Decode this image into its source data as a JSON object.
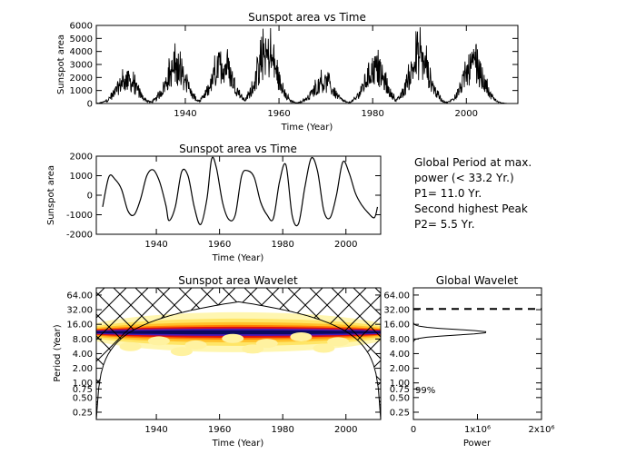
{
  "chart_data": [
    {
      "type": "line",
      "title": "Sunspot area vs Time",
      "xlabel": "Time (Year)",
      "ylabel": "Sunspot area",
      "xlim": [
        1921,
        2011
      ],
      "ylim": [
        0,
        6000
      ],
      "x_ticks": [
        1940,
        1960,
        1980,
        2000
      ],
      "y_ticks": [
        0,
        1000,
        2000,
        3000,
        4000,
        5000,
        6000
      ],
      "cycle_maxima_x": [
        1927.5,
        1938,
        1948,
        1957.5,
        1969.5,
        1980.5,
        1990,
        2001.5
      ],
      "cycle_maxima_y": [
        2600,
        3900,
        4400,
        5300,
        2300,
        3900,
        5000,
        4200
      ]
    },
    {
      "type": "line",
      "title": "Sunspot area vs Time",
      "xlabel": "Time (Year)",
      "ylabel": "Sunspot area",
      "xlim": [
        1921,
        2011
      ],
      "ylim": [
        -2000,
        2000
      ],
      "x_ticks": [
        1940,
        1960,
        1980,
        2000
      ],
      "y_ticks": [
        -2000,
        -1000,
        0,
        1000,
        2000
      ],
      "x": [
        1923,
        1925,
        1927,
        1929,
        1931,
        1933,
        1935,
        1937,
        1939,
        1941,
        1943,
        1944,
        1946,
        1948,
        1950,
        1952,
        1954,
        1956,
        1957.5,
        1959,
        1961,
        1963,
        1965,
        1967,
        1969,
        1971,
        1973,
        1975,
        1977,
        1979,
        1981,
        1983,
        1985,
        1987,
        1989,
        1991,
        1993,
        1995,
        1997,
        1999,
        2001,
        2003,
        2005,
        2007,
        2009,
        2010
      ],
      "y": [
        -600,
        950,
        800,
        300,
        -800,
        -1000,
        -200,
        1000,
        1300,
        700,
        -500,
        -1300,
        -600,
        1200,
        1000,
        -600,
        -1500,
        -200,
        1850,
        1400,
        -400,
        -1250,
        -1000,
        1000,
        1250,
        900,
        -350,
        -1000,
        -1200,
        700,
        1550,
        -1050,
        -1450,
        400,
        1900,
        1250,
        -800,
        -1150,
        0,
        1700,
        1150,
        100,
        -500,
        -900,
        -1150,
        -600
      ]
    },
    {
      "type": "heatmap",
      "title": "Sunspot area Wavelet",
      "xlabel": "Time (Year)",
      "ylabel": "Period (Year)",
      "xlim": [
        1921,
        2011
      ],
      "ylim": [
        0.177,
        90
      ],
      "yscale": "log",
      "x_ticks": [
        1940,
        1960,
        1980,
        2000
      ],
      "y_ticks": [
        "0.25",
        "0.50",
        "0.75",
        "1.00",
        "2.00",
        "4.00",
        "8.00",
        "16.00",
        "32.00",
        "64.00"
      ],
      "power_band_period": 11.0,
      "cone_of_influence": "hatched"
    },
    {
      "type": "line",
      "title": "Global Wavelet",
      "xlabel": "Power",
      "xlim": [
        0,
        2000000
      ],
      "ylim": [
        0.177,
        90
      ],
      "yscale": "log",
      "x_ticks": [
        "0",
        "1x10⁶",
        "2x10⁶"
      ],
      "y_ticks": [
        "0.25",
        "0.50",
        "0.75",
        "1.00",
        "2.00",
        "4.00",
        "8.00",
        "16.00",
        "32.00",
        "64.00"
      ],
      "peak_period": 11.0,
      "peak_power": 1150000,
      "significance_period": 33.2,
      "significance_label": "99%"
    }
  ],
  "annotation": {
    "line1": "Global Period at max.",
    "line2": "power (< 33.2 Yr.)",
    "line3": "P1= 11.0 Yr.",
    "line4": "Second highest Peak",
    "line5": "P2= 5.5 Yr."
  }
}
